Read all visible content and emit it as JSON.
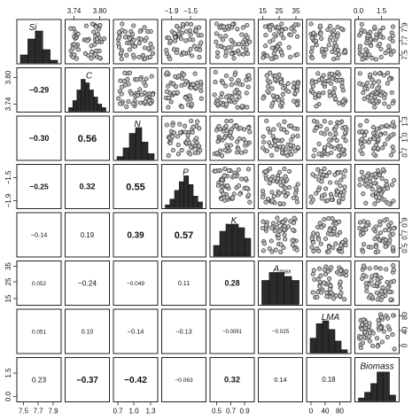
{
  "chart_data": {
    "type": "scatter",
    "title": "",
    "variables": [
      "Si",
      "C",
      "N",
      "P",
      "K",
      "Amax",
      "LMA",
      "Biomass"
    ],
    "variable_labels": [
      {
        "main": "Si",
        "sub": ""
      },
      {
        "main": "C",
        "sub": ""
      },
      {
        "main": "N",
        "sub": ""
      },
      {
        "main": "P",
        "sub": ""
      },
      {
        "main": "K",
        "sub": ""
      },
      {
        "main": "A",
        "sub": "max"
      },
      {
        "main": "LMA",
        "sub": ""
      },
      {
        "main": "Biomass",
        "sub": ""
      }
    ],
    "correlations": [
      {
        "row": 1,
        "col": 0,
        "text": "−0.29",
        "value": -0.29,
        "bold": true
      },
      {
        "row": 2,
        "col": 0,
        "text": "−0.30",
        "value": -0.3,
        "bold": true
      },
      {
        "row": 3,
        "col": 0,
        "text": "−0.25",
        "value": -0.25,
        "bold": true
      },
      {
        "row": 4,
        "col": 0,
        "text": "−0.14",
        "value": -0.14,
        "bold": false
      },
      {
        "row": 5,
        "col": 0,
        "text": "0.052",
        "value": 0.052,
        "bold": false
      },
      {
        "row": 6,
        "col": 0,
        "text": "0.051",
        "value": 0.051,
        "bold": false
      },
      {
        "row": 7,
        "col": 0,
        "text": "0.23",
        "value": 0.23,
        "bold": false
      },
      {
        "row": 2,
        "col": 1,
        "text": "0.56",
        "value": 0.56,
        "bold": true
      },
      {
        "row": 3,
        "col": 1,
        "text": "0.32",
        "value": 0.32,
        "bold": true
      },
      {
        "row": 4,
        "col": 1,
        "text": "0.19",
        "value": 0.19,
        "bold": false
      },
      {
        "row": 5,
        "col": 1,
        "text": "−0.24",
        "value": -0.24,
        "bold": false
      },
      {
        "row": 6,
        "col": 1,
        "text": "0.10",
        "value": 0.1,
        "bold": false
      },
      {
        "row": 7,
        "col": 1,
        "text": "−0.37",
        "value": -0.37,
        "bold": true
      },
      {
        "row": 3,
        "col": 2,
        "text": "0.55",
        "value": 0.55,
        "bold": true
      },
      {
        "row": 4,
        "col": 2,
        "text": "0.39",
        "value": 0.39,
        "bold": true
      },
      {
        "row": 5,
        "col": 2,
        "text": "−0.049",
        "value": -0.049,
        "bold": false
      },
      {
        "row": 6,
        "col": 2,
        "text": "−0.14",
        "value": -0.14,
        "bold": false
      },
      {
        "row": 7,
        "col": 2,
        "text": "−0.42",
        "value": -0.42,
        "bold": true
      },
      {
        "row": 4,
        "col": 3,
        "text": "0.57",
        "value": 0.57,
        "bold": true
      },
      {
        "row": 5,
        "col": 3,
        "text": "0.11",
        "value": 0.11,
        "bold": false
      },
      {
        "row": 6,
        "col": 3,
        "text": "−0.13",
        "value": -0.13,
        "bold": false
      },
      {
        "row": 7,
        "col": 3,
        "text": "−0.063",
        "value": -0.063,
        "bold": false
      },
      {
        "row": 5,
        "col": 4,
        "text": "0.28",
        "value": 0.28,
        "bold": true
      },
      {
        "row": 6,
        "col": 4,
        "text": "−0.0091",
        "value": -0.0091,
        "bold": false
      },
      {
        "row": 7,
        "col": 4,
        "text": "0.32",
        "value": 0.32,
        "bold": true
      },
      {
        "row": 6,
        "col": 5,
        "text": "−0.025",
        "value": -0.025,
        "bold": false
      },
      {
        "row": 7,
        "col": 5,
        "text": "0.14",
        "value": 0.14,
        "bold": false
      },
      {
        "row": 7,
        "col": 6,
        "text": "0.18",
        "value": 0.18,
        "bold": false
      }
    ],
    "histograms": [
      {
        "var": "Si",
        "counts": [
          3,
          9,
          12,
          5,
          1
        ]
      },
      {
        "var": "C",
        "counts": [
          1,
          3,
          6,
          9,
          8,
          6,
          4,
          2,
          1
        ]
      },
      {
        "var": "N",
        "counts": [
          1,
          4,
          9,
          11,
          6,
          2
        ]
      },
      {
        "var": "P",
        "counts": [
          1,
          3,
          6,
          9,
          11,
          8,
          4,
          2
        ]
      },
      {
        "var": "K",
        "counts": [
          3,
          7,
          9,
          9,
          8,
          5
        ]
      },
      {
        "var": "Amax",
        "counts": [
          6,
          8,
          8,
          7,
          6
        ]
      },
      {
        "var": "LMA",
        "counts": [
          5,
          10,
          11,
          8,
          4,
          1
        ]
      },
      {
        "var": "Biomass",
        "counts": [
          1,
          3,
          6,
          11,
          11,
          2
        ]
      }
    ],
    "top_axes": [
      {
        "col": 1,
        "ticks": [
          "3.74",
          "3.80"
        ],
        "positions": [
          0.2,
          0.78
        ]
      },
      {
        "col": 3,
        "ticks": [
          "−1.9",
          "−1.5"
        ],
        "positions": [
          0.22,
          0.65
        ]
      },
      {
        "col": 5,
        "ticks": [
          "15",
          "25",
          "35"
        ],
        "positions": [
          0.1,
          0.47,
          0.85
        ]
      },
      {
        "col": 7,
        "ticks": [
          "0.0",
          "1.5"
        ],
        "positions": [
          0.08,
          0.6
        ]
      }
    ],
    "bottom_axes": [
      {
        "col": 0,
        "ticks": [
          "7.5",
          "7.7",
          "7.9"
        ],
        "positions": [
          0.15,
          0.48,
          0.82
        ]
      },
      {
        "col": 2,
        "ticks": [
          "0.7",
          "1.0",
          "1.3"
        ],
        "positions": [
          0.1,
          0.46,
          0.84
        ]
      },
      {
        "col": 4,
        "ticks": [
          "0.5",
          "0.7",
          "0.9"
        ],
        "positions": [
          0.15,
          0.47,
          0.78
        ]
      },
      {
        "col": 6,
        "ticks": [
          "0",
          "40",
          "80"
        ],
        "positions": [
          0.1,
          0.42,
          0.75
        ]
      }
    ],
    "left_axes": [
      {
        "row": 1,
        "ticks": [
          "3.80",
          "3.74"
        ],
        "positions": [
          0.22,
          0.82
        ]
      },
      {
        "row": 3,
        "ticks": [
          "−1.5",
          "−1.9"
        ],
        "positions": [
          0.3,
          0.82
        ]
      },
      {
        "row": 5,
        "ticks": [
          "35",
          "25",
          "15"
        ],
        "positions": [
          0.12,
          0.47,
          0.85
        ]
      },
      {
        "row": 7,
        "ticks": [
          "1.5",
          "0.0"
        ],
        "positions": [
          0.35,
          0.88
        ]
      }
    ],
    "right_axes": [
      {
        "row": 0,
        "ticks": [
          "7.9",
          "7.7",
          "7.5"
        ],
        "positions": [
          0.18,
          0.48,
          0.8
        ]
      },
      {
        "row": 2,
        "ticks": [
          "1.3",
          "1.0",
          "0.7"
        ],
        "positions": [
          0.12,
          0.48,
          0.82
        ]
      },
      {
        "row": 4,
        "ticks": [
          "0.9",
          "0.7",
          "0.5"
        ],
        "positions": [
          0.22,
          0.5,
          0.8
        ]
      },
      {
        "row": 6,
        "ticks": [
          "80",
          "40",
          "0"
        ],
        "positions": [
          0.15,
          0.48,
          0.82
        ]
      }
    ]
  }
}
